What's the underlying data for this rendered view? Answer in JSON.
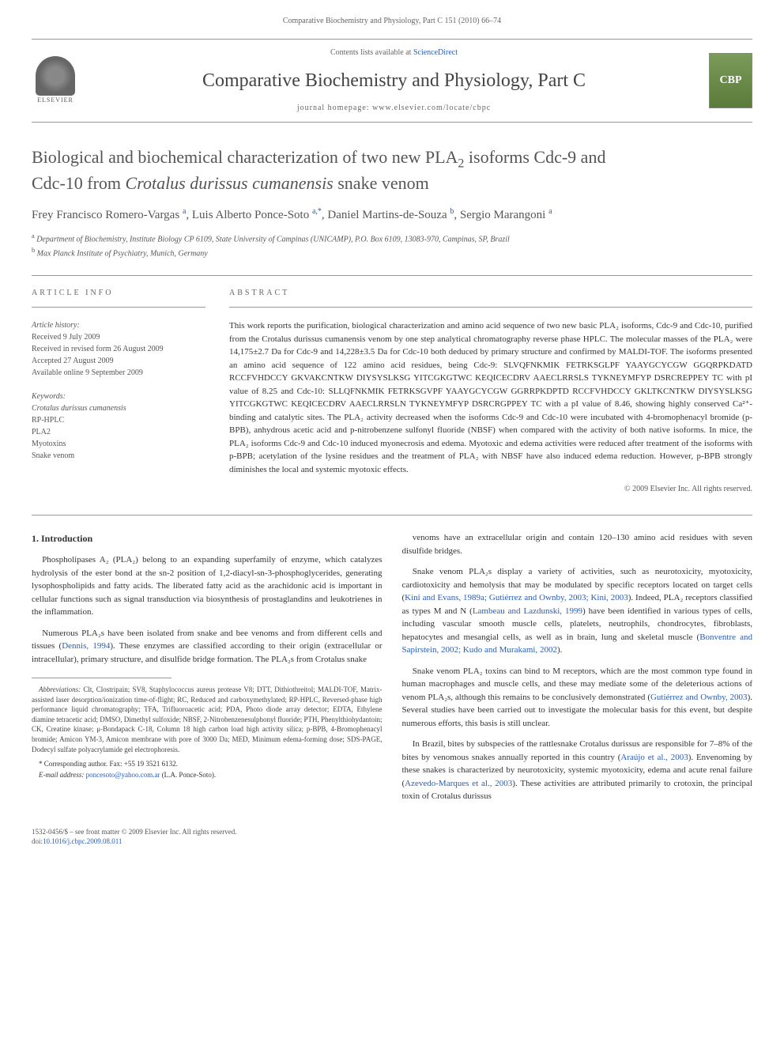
{
  "page_header": "Comparative Biochemistry and Physiology, Part C 151 (2010) 66–74",
  "header": {
    "contents_prefix": "Contents lists available at ",
    "contents_link": "ScienceDirect",
    "journal_title": "Comparative Biochemistry and Physiology, Part C",
    "homepage_prefix": "journal homepage: ",
    "homepage": "www.elsevier.com/locate/cbpc",
    "elsevier_label": "ELSEVIER",
    "cover_label": "CBP"
  },
  "title": {
    "line1_pre": "Biological and biochemical characterization of two new PLA",
    "line1_sub": "2",
    "line1_post": " isoforms Cdc-9 and",
    "line2_pre": "Cdc-10 from ",
    "line2_em": "Crotalus durissus cumanensis",
    "line2_post": " snake venom"
  },
  "authors": {
    "a1_name": "Frey Francisco Romero-Vargas",
    "a1_sup": "a",
    "a2_name": "Luis Alberto Ponce-Soto",
    "a2_sup": "a,",
    "a2_star": "*",
    "a3_name": "Daniel Martins-de-Souza",
    "a3_sup": "b",
    "a4_name": "Sergio Marangoni",
    "a4_sup": "a"
  },
  "affiliations": {
    "a_sup": "a",
    "a_text": " Department of Biochemistry, Institute Biology CP 6109, State University of Campinas (UNICAMP), P.O. Box 6109, 13083-970, Campinas, SP, Brazil",
    "b_sup": "b",
    "b_text": " Max Planck Institute of Psychiatry, Munich, Germany"
  },
  "info": {
    "heading": "ARTICLE INFO",
    "history_label": "Article history:",
    "received": "Received 9 July 2009",
    "revised": "Received in revised form 26 August 2009",
    "accepted": "Accepted 27 August 2009",
    "online": "Available online 9 September 2009",
    "keywords_label": "Keywords:",
    "kw1": "Crotalus durissus cumanensis",
    "kw2": "RP-HPLC",
    "kw3": "PLA",
    "kw3_sub": "2",
    "kw4": "Myotoxins",
    "kw5": "Snake venom"
  },
  "abstract": {
    "heading": "ABSTRACT",
    "text": "This work reports the purification, biological characterization and amino acid sequence of two new basic PLA₂ isoforms, Cdc-9 and Cdc-10, purified from the Crotalus durissus cumanensis venom by one step analytical chromatography reverse phase HPLC. The molecular masses of the PLA₂ were 14,175±2.7 Da for Cdc-9 and 14,228±3.5 Da for Cdc-10 both deduced by primary structure and confirmed by MALDI-TOF. The isoforms presented an amino acid sequence of 122 amino acid residues, being Cdc-9: SLVQFNKMIK FETRKSGLPF YAAYGCYCGW GGQRPKDATD RCCFVHDCCY GKVAKCNTKW DIYSYSLKSG YITCGKGTWC KEQICECDRV AAECLRRSLS TYKNEYMFYP DSRCREPPEY TC with pI value of 8.25 and Cdc-10: SLLQFNKMIK FETRKSGVPF YAAYGCYCGW GGRRPKDPTD RCCFVHDCCY GKLTKCNTKW DIYSYSLKSG YITCGKGTWC KEQICECDRV AAECLRRSLN TYKNEYMFYP DSRCRGPPEY TC with a pI value of 8.46, showing highly conserved Ca²⁺-binding and catalytic sites. The PLA₂ activity decreased when the isoforms Cdc-9 and Cdc-10 were incubated with 4-bromophenacyl bromide (p-BPB), anhydrous acetic acid and p-nitrobenzene sulfonyl fluoride (NBSF) when compared with the activity of both native isoforms. In mice, the PLA₂ isoforms Cdc-9 and Cdc-10 induced myonecrosis and edema. Myotoxic and edema activities were reduced after treatment of the isoforms with p-BPB; acetylation of the lysine residues and the treatment of PLA₂ with NBSF have also induced edema reduction. However, p-BPB strongly diminishes the local and systemic myotoxic effects.",
    "copyright": "© 2009 Elsevier Inc. All rights reserved."
  },
  "body": {
    "intro_heading": "1. Introduction",
    "p1": "Phospholipases A₂ (PLA₂) belong to an expanding superfamily of enzyme, which catalyzes hydrolysis of the ester bond at the sn-2 position of 1,2-diacyl-sn-3-phosphoglycerides, generating lysophospholipids and fatty acids. The liberated fatty acid as the arachidonic acid is important in cellular functions such as signal transduction via biosynthesis of prostaglandins and leukotrienes in the inflammation.",
    "p2_pre": "Numerous PLA₂s have been isolated from snake and bee venoms and from different cells and tissues (",
    "p2_link": "Dennis, 1994",
    "p2_post": "). These enzymes are classified according to their origin (extracellular or intracellular), primary structure, and disulfide bridge formation. The PLA₂s from Crotalus snake",
    "p3": "venoms have an extracellular origin and contain 120–130 amino acid residues with seven disulfide bridges.",
    "p4_pre": "Snake venom PLA₂s display a variety of activities, such as neurotoxicity, myotoxicity, cardiotoxicity and hemolysis that may be modulated by specific receptors located on target cells (",
    "p4_link1": "Kini and Evans, 1989a; Gutiérrez and Ownby, 2003; Kini, 2003",
    "p4_mid": "). Indeed, PLA₂ receptors classified as types M and N (",
    "p4_link2": "Lambeau and Lazdunski, 1999",
    "p4_mid2": ") have been identified in various types of cells, including vascular smooth muscle cells, platelets, neutrophils, chondrocytes, fibroblasts, hepatocytes and mesangial cells, as well as in brain, lung and skeletal muscle (",
    "p4_link3": "Bonventre and Sapirstein, 2002; Kudo and Murakami, 2002",
    "p4_post": ").",
    "p5_pre": "Snake venom PLA₂ toxins can bind to M receptors, which are the most common type found in human macrophages and muscle cells, and these may mediate some of the deleterious actions of venom PLA₂s, although this remains to be conclusively demonstrated (",
    "p5_link": "Gutiérrez and Ownby, 2003",
    "p5_post": "). Several studies have been carried out to investigate the molecular basis for this event, but despite numerous efforts, this basis is still unclear.",
    "p6_pre": "In Brazil, bites by subspecies of the rattlesnake Crotalus durissus are responsible for 7–8% of the bites by venomous snakes annually reported in this country (",
    "p6_link1": "Araújo et al., 2003",
    "p6_mid": "). Envenoming by these snakes is characterized by neurotoxicity, systemic myotoxicity, edema and acute renal failure (",
    "p6_link2": "Azevedo-Marques et al., 2003",
    "p6_post": "). These activities are attributed primarily to crotoxin, the principal toxin of Crotalus durissus"
  },
  "footnote": {
    "abbrev_label": "Abbreviations:",
    "abbrev_text": " Clt, Clostripain; SV8, Staphylococcus aureus protease V8; DTT, Dithiothreitol; MALDI-TOF, Matrix-assisted laser desorption/ionization time-of-flight; RC, Reduced and carboxymethylated; RP-HPLC, Reversed-phase high performance liquid chromatography; TFA, Trifluoroacetic acid; PDA, Photo diode array detector; EDTA, Ethylene diamine tetracetic acid; DMSO, Dimethyl sulfoxide; NBSF, 2-Nitrobenzenesulphonyl fluoride; PTH, Phenylthiohydantoin; CK, Creatine kinase; μ-Bondapack C-18, Column 18 high carbon load high activity silica; p-BPB, 4-Bromophenacyl bromide; Amicon YM-3, Amicon membrane with pore of 3000 Da; MED, Minimum edema-forming dose; SDS-PAGE, Dodecyl sulfate polyacrylamide gel electrophoresis.",
    "corresponding": "* Corresponding author. Fax: +55 19 3521 6132.",
    "email_label": "E-mail address:",
    "email": "poncesoto@yahoo.com.ar",
    "email_name": " (L.A. Ponce-Soto)."
  },
  "footer": {
    "left": "1532-0456/$ – see front matter © 2009 Elsevier Inc. All rights reserved.",
    "doi_prefix": "doi:",
    "doi": "10.1016/j.cbpc.2009.08.011"
  }
}
